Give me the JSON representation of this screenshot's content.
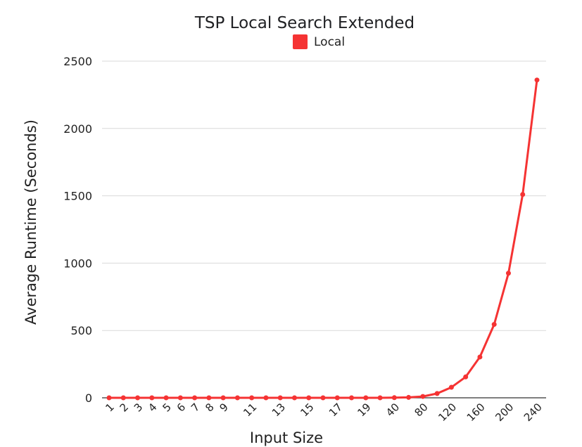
{
  "chart_data": {
    "type": "line",
    "title": "TSP Local Search Extended",
    "xlabel": "Input Size",
    "ylabel": "Average Runtime (Seconds)",
    "ylim": [
      0,
      2500
    ],
    "yticks": [
      0,
      500,
      1000,
      1500,
      2000,
      2500
    ],
    "grid": true,
    "legend_position": "top-center",
    "categories": [
      "1",
      "2",
      "3",
      "4",
      "5",
      "6",
      "7",
      "8",
      "9",
      "10",
      "11",
      "12",
      "13",
      "14",
      "15",
      "16",
      "17",
      "18",
      "19",
      "20",
      "40",
      "60",
      "80",
      "100",
      "120",
      "140",
      "160",
      "180",
      "200",
      "220",
      "240"
    ],
    "tick_labels": [
      "1",
      "2",
      "3",
      "4",
      "5",
      "6",
      "7",
      "8",
      "9",
      "",
      "11",
      "",
      "13",
      "",
      "15",
      "",
      "17",
      "",
      "19",
      "",
      "40",
      "",
      "80",
      "",
      "120",
      "",
      "160",
      "",
      "200",
      "",
      "240"
    ],
    "series": [
      {
        "name": "Local",
        "color": "#f53333",
        "values": [
          0,
          0,
          0,
          0,
          0,
          0,
          0,
          0,
          0,
          0,
          0,
          0,
          0,
          0,
          0,
          0,
          0,
          0,
          0,
          0,
          1,
          3,
          10,
          32,
          78,
          155,
          303,
          545,
          925,
          1510,
          2360
        ]
      }
    ]
  }
}
